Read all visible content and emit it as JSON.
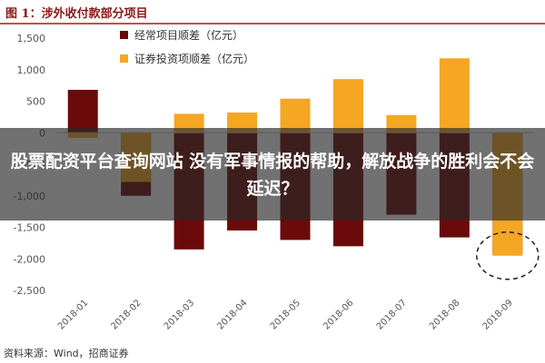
{
  "figure_title": "图 1：涉外收付款部分项目",
  "source_note": "资料来源：Wind，招商证券",
  "overlay_caption": "股票配资平台查询网站 没有军事情报的帮助，解放战争的胜利会不会延迟？",
  "colors": {
    "current_account": "#6b0a0a",
    "securities_investment": "#f5a623",
    "title": "#8a1717",
    "rule": "#c0504d",
    "highlight_circle": "#222222"
  },
  "chart_data": {
    "type": "bar",
    "categories": [
      "2018-01",
      "2018-02",
      "2018-03",
      "2018-04",
      "2018-05",
      "2018-06",
      "2018-07",
      "2018-08",
      "2018-09"
    ],
    "series": [
      {
        "name": "经常项目顺差（亿元）",
        "color": "#6b0a0a",
        "values": [
          680,
          -1000,
          -1850,
          -1550,
          -1700,
          -1800,
          -1300,
          -1660,
          -1920
        ]
      },
      {
        "name": "证券投资项顺差（亿元）",
        "color": "#f5a623",
        "values": [
          -80,
          -780,
          300,
          320,
          540,
          850,
          280,
          1180,
          -1950
        ]
      }
    ],
    "ylim": [
      -2500,
      1500
    ],
    "yticks": [
      -2500,
      -2000,
      -1500,
      -1000,
      -500,
      0,
      500,
      1000,
      1500
    ],
    "ytick_labels": [
      "-2,500",
      "-2,000",
      "-1,500",
      "-1,000",
      "-500",
      "0",
      "500",
      "1,000",
      "1,500"
    ],
    "legend_position": "top",
    "grid": false,
    "highlight": "dashed circle around 2018-09"
  }
}
